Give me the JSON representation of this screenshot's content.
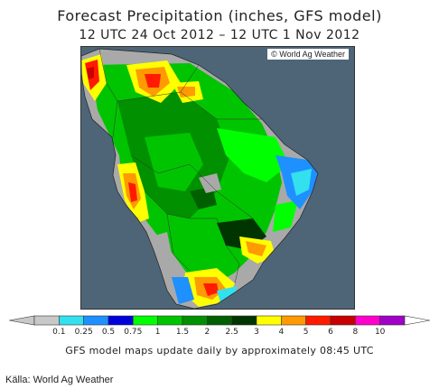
{
  "header": {
    "title": "Forecast Precipitation (inches, GFS model)",
    "subtitle": "12 UTC 24 Oct 2012 – 12 UTC 1 Nov 2012"
  },
  "map": {
    "credit": "© World Ag Weather",
    "ocean_color": "#4d6577",
    "land_color": "#a9a9a9"
  },
  "legend": {
    "labels": [
      "0.1",
      "0.25",
      "0.5",
      "0.75",
      "1",
      "1.5",
      "2",
      "2.5",
      "3",
      "4",
      "5",
      "6",
      "8",
      "10"
    ],
    "colors": [
      "#c8c8c8",
      "#33e0ee",
      "#1e90ff",
      "#0000dd",
      "#00ff00",
      "#00c400",
      "#009000",
      "#006000",
      "#003500",
      "#ffff00",
      "#ff9a00",
      "#ff1a00",
      "#c80000",
      "#ff00cc",
      "#a000c8"
    ]
  },
  "footer": {
    "note": "GFS model maps update daily by approximately 08:45 UTC",
    "source": "Källa: World Ag Weather"
  }
}
